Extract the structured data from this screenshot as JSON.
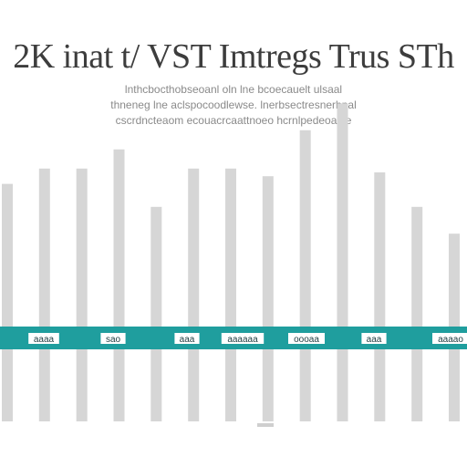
{
  "chart_data": {
    "type": "bar",
    "title": "2K inat t/ VST Imtregs Trus STh",
    "subtitle_lines": [
      "lnthcbocthobseoanl oln lne bcoecauelt ulsaal",
      "thneneg lne aclspocoodlewse. lnerbsectresnerbpal",
      "cscrdncteaom ecouacrcaattnoeo hcrnlpedeoaole"
    ],
    "band_labels": [
      "aaaa",
      "sao",
      "aaa",
      "aaaaaa",
      "oooaa",
      "aaa",
      "aaaao"
    ],
    "categories": [
      "",
      "",
      "",
      "",
      "",
      "",
      "",
      "",
      "",
      "",
      "",
      "",
      ""
    ],
    "values": [
      62,
      66,
      66,
      71,
      56,
      66,
      66,
      64,
      76,
      83,
      65,
      56,
      49
    ],
    "ylim": [
      0,
      100
    ],
    "grid": false,
    "colors": {
      "bar": "#d6d6d6",
      "band": "#1f9e9e",
      "band_label": "#1d3d40",
      "title": "#3d3d3d",
      "subtitle": "#8a8a8a"
    }
  }
}
